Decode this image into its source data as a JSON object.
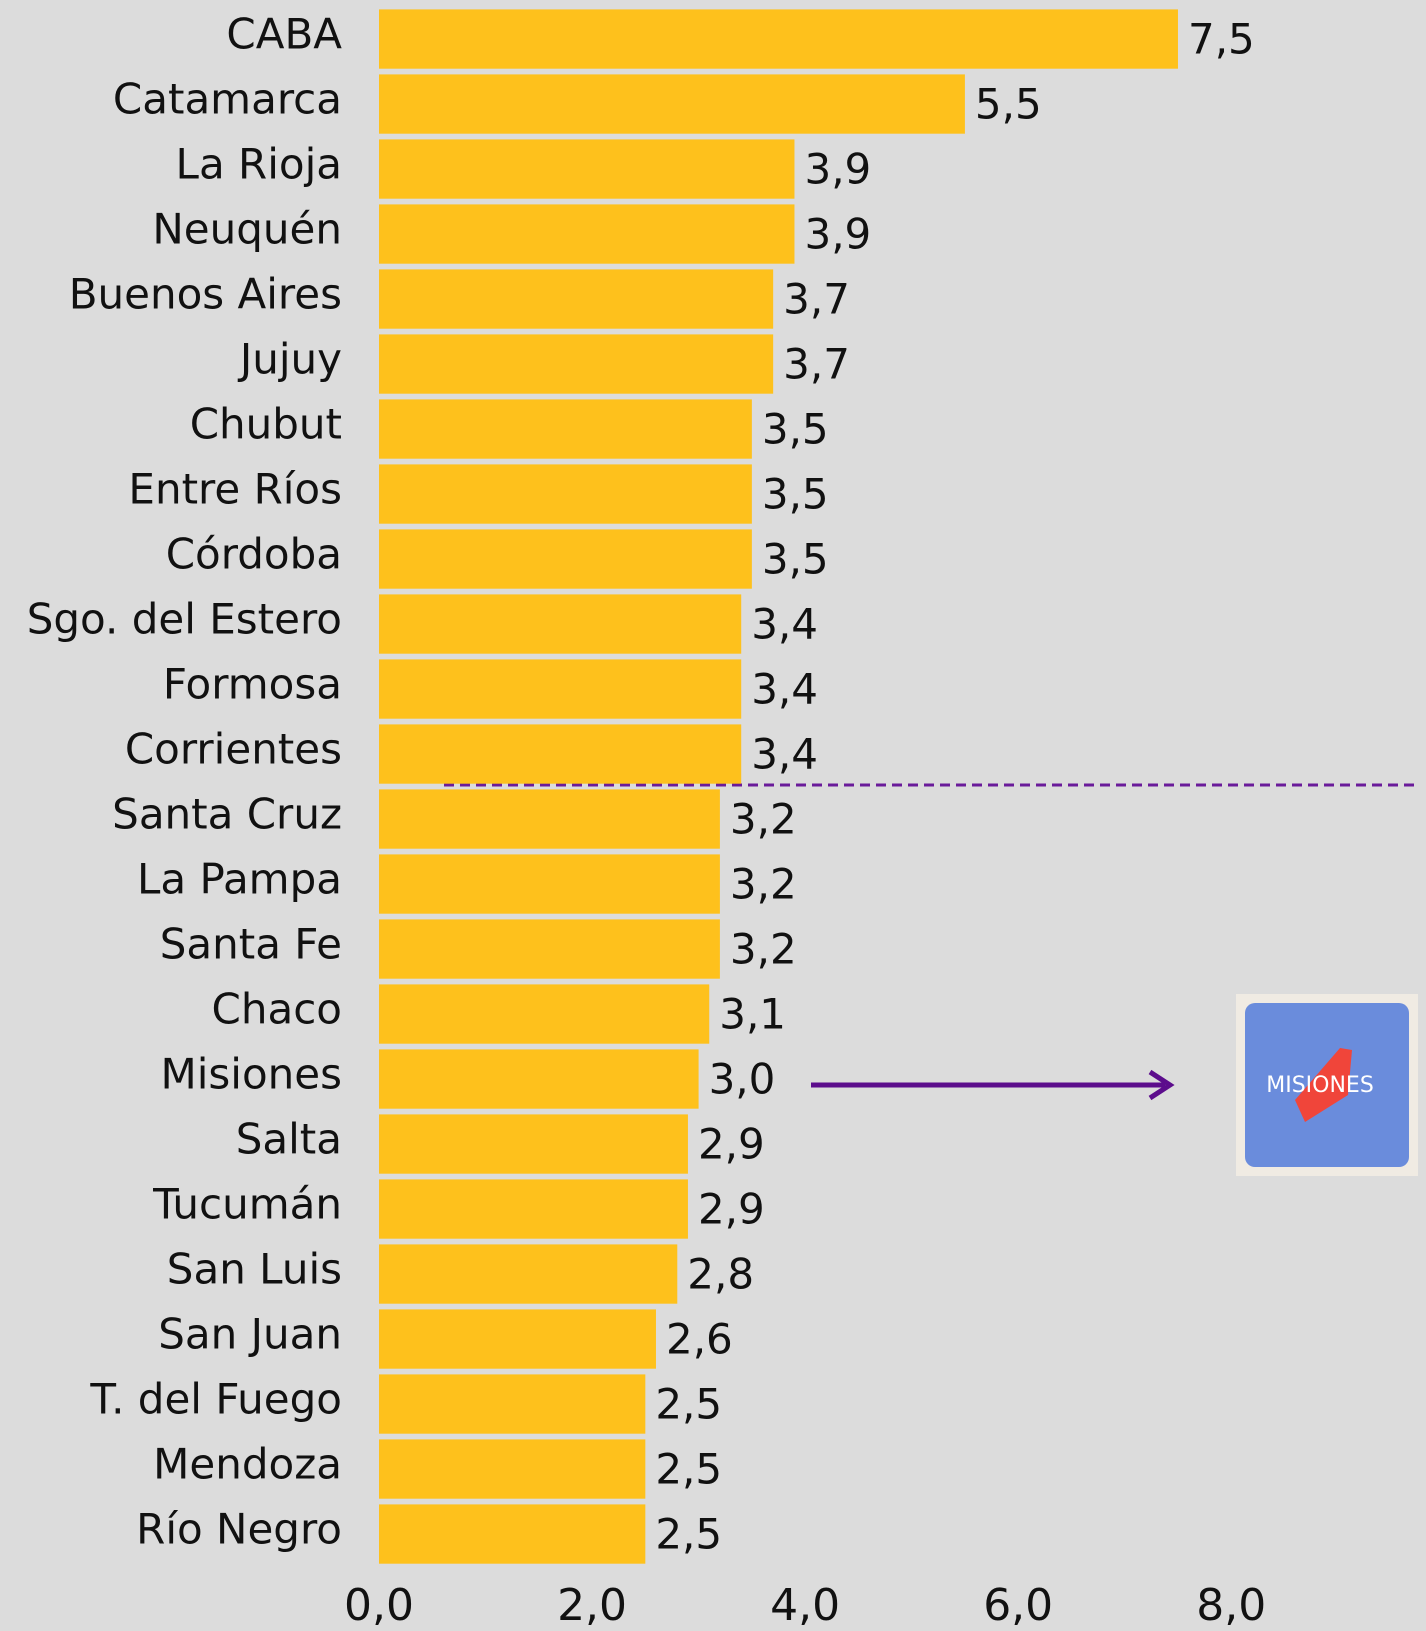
{
  "chart_data": {
    "type": "bar",
    "orientation": "horizontal",
    "categories": [
      "CABA",
      "Catamarca",
      "La Rioja",
      "Neuquén",
      "Buenos Aires",
      "Jujuy",
      "Chubut",
      "Entre Ríos",
      "Córdoba",
      "Sgo. del Estero",
      "Formosa",
      "Corrientes",
      "Santa Cruz",
      "La Pampa",
      "Santa Fe",
      "Chaco",
      "Misiones",
      "Salta",
      "Tucumán",
      "San Luis",
      "San Juan",
      "T. del Fuego",
      "Mendoza",
      "Río Negro"
    ],
    "values": [
      7.5,
      5.5,
      3.9,
      3.9,
      3.7,
      3.7,
      3.5,
      3.5,
      3.5,
      3.4,
      3.4,
      3.4,
      3.2,
      3.2,
      3.2,
      3.1,
      3.0,
      2.9,
      2.9,
      2.8,
      2.6,
      2.5,
      2.5,
      2.5
    ],
    "value_labels": [
      "7,5",
      "5,5",
      "3,9",
      "3,9",
      "3,7",
      "3,7",
      "3,5",
      "3,5",
      "3,5",
      "3,4",
      "3,4",
      "3,4",
      "3,2",
      "3,2",
      "3,2",
      "3,1",
      "3,0",
      "2,9",
      "2,9",
      "2,8",
      "2,6",
      "2,5",
      "2,5",
      "2,5"
    ],
    "color": "#fec11c",
    "xlim": [
      0,
      9.8
    ],
    "xticks": [
      {
        "value": 0,
        "label": "0,0"
      },
      {
        "value": 2,
        "label": "2,0"
      },
      {
        "value": 4,
        "label": "4,0"
      },
      {
        "value": 6,
        "label": "6,0"
      },
      {
        "value": 8,
        "label": "8,0"
      }
    ],
    "logo_text": "MISIONES"
  }
}
